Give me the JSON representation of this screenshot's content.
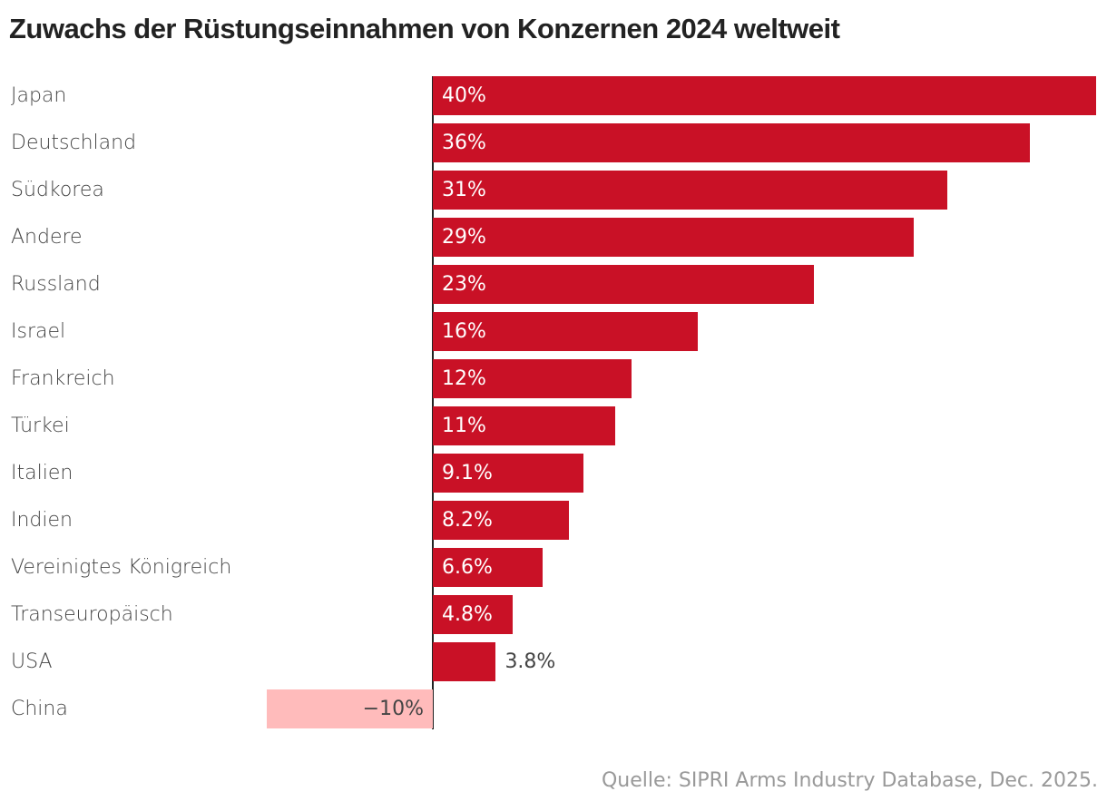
{
  "chart_data": {
    "type": "bar",
    "orientation": "horizontal",
    "title": "Zuwachs der Rüstungseinnahmen von Konzernen 2024 weltweit",
    "categories": [
      "Japan",
      "Deutschland",
      "Südkorea",
      "Andere",
      "Russland",
      "Israel",
      "Frankreich",
      "Türkei",
      "Italien",
      "Indien",
      "Vereinigtes Königreich",
      "Transeuropäisch",
      "USA",
      "China"
    ],
    "values": [
      40,
      36,
      31,
      29,
      23,
      16,
      12,
      11,
      9.1,
      8.2,
      6.6,
      4.8,
      3.8,
      -10
    ],
    "labels": [
      "40%",
      "36%",
      "31%",
      "29%",
      "23%",
      "16%",
      "12%",
      "11%",
      "9.1%",
      "8.2%",
      "6.6%",
      "4.8%",
      "3.8%",
      "−10%"
    ],
    "xlim": [
      -10,
      40
    ],
    "grid": false,
    "colors": {
      "positive": "#c91126",
      "negative": "#ffbbbb",
      "label_inside": "#ffffff",
      "label_outside": "#444444"
    },
    "source": "Quelle: SIPRI Arms Industry Database, Dec. 2025."
  }
}
